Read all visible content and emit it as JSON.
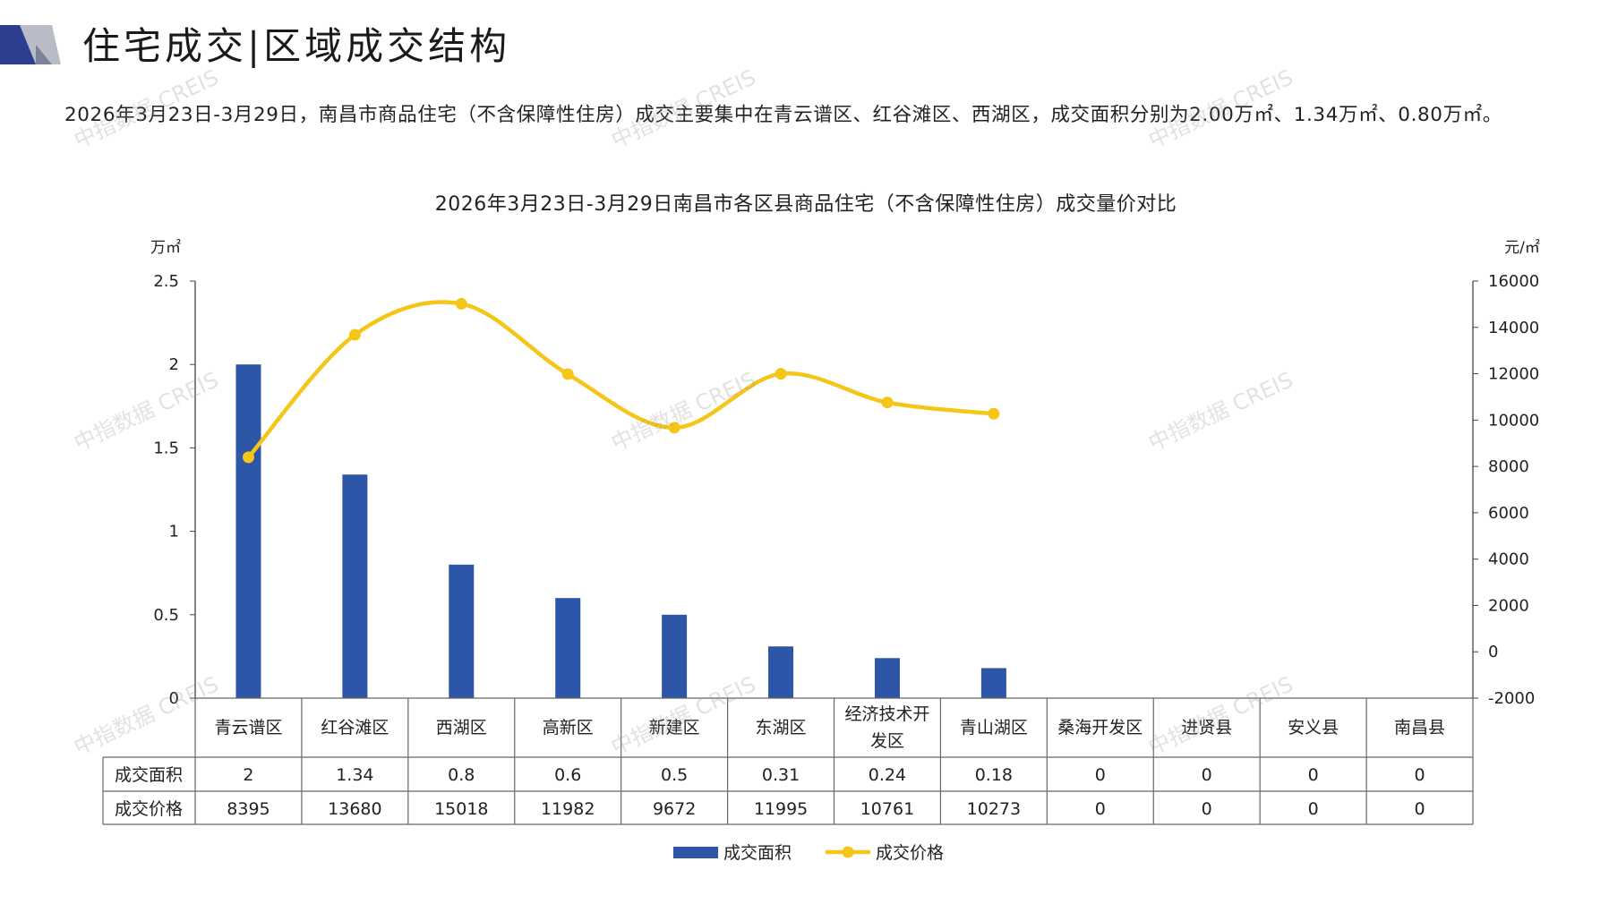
{
  "page": {
    "section_title": "住宅成交|区域成交结构",
    "summary": "2026年3月23日-3月29日，南昌市商品住宅（不含保障性住房）成交主要集中在青云谱区、红谷滩区、西湖区，成交面积分别为2.00万㎡、1.34万㎡、0.80万㎡。",
    "watermark": "中指数据 CREIS",
    "brand_colors": {
      "navy": "#2d3e8f",
      "grey": "#b9bcc6"
    }
  },
  "chart_data": {
    "type": "bar",
    "title": "2026年3月23日-3月29日南昌市各区县商品住宅（不含保障性住房）成交量价对比",
    "categories": [
      [
        "青云谱区"
      ],
      [
        "红谷滩区"
      ],
      [
        "西湖区"
      ],
      [
        "高新区"
      ],
      [
        "新建区"
      ],
      [
        "东湖区"
      ],
      [
        "经济技术开",
        "发区"
      ],
      [
        "青山湖区"
      ],
      [
        "桑海开发区"
      ],
      [
        "进贤县"
      ],
      [
        "安义县"
      ],
      [
        "南昌县"
      ]
    ],
    "y_left": {
      "unit": "万㎡",
      "ticks": [
        "2.5",
        "2",
        "1.5",
        "1",
        "0.5",
        "0"
      ],
      "min": 0,
      "max": 2.5
    },
    "y_right": {
      "unit": "元/㎡",
      "ticks": [
        "16000",
        "14000",
        "12000",
        "10000",
        "8000",
        "6000",
        "4000",
        "2000",
        "0",
        "-2000"
      ],
      "min": -2000,
      "max": 16000
    },
    "series": [
      {
        "name": "成交面积",
        "kind": "bar",
        "axis": "left",
        "color": "#2e56a8",
        "values": [
          2,
          1.34,
          0.8,
          0.6,
          0.5,
          0.31,
          0.24,
          0.18,
          0,
          0,
          0,
          0
        ],
        "labels": [
          "2",
          "1.34",
          "0.8",
          "0.6",
          "0.5",
          "0.31",
          "0.24",
          "0.18",
          "0",
          "0",
          "0",
          "0"
        ]
      },
      {
        "name": "成交价格",
        "kind": "line",
        "axis": "right",
        "color": "#f5c518",
        "values": [
          8395,
          13680,
          15018,
          11982,
          9672,
          11995,
          10761,
          10273,
          0,
          0,
          0,
          0
        ],
        "labels": [
          "8395",
          "13680",
          "15018",
          "11982",
          "9672",
          "11995",
          "10761",
          "10273",
          "0",
          "0",
          "0",
          "0"
        ],
        "plotted_points": 8
      }
    ],
    "grid": false,
    "legend_position": "bottom"
  }
}
